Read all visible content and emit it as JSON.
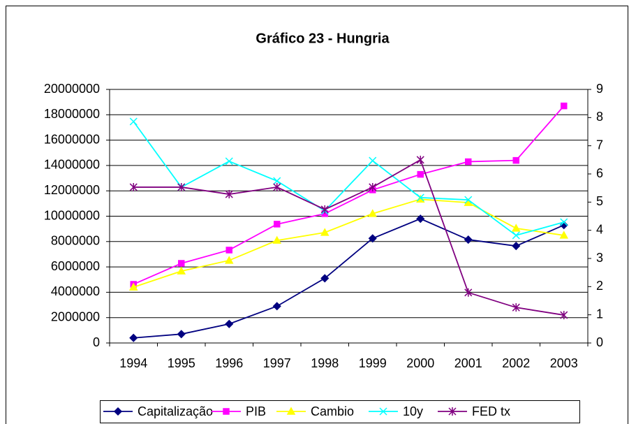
{
  "chart_data": {
    "type": "line",
    "title": "Gráfico 23 - Hungria",
    "categories": [
      "1994",
      "1995",
      "1996",
      "1997",
      "1998",
      "1999",
      "2000",
      "2001",
      "2002",
      "2003"
    ],
    "ylim": [
      0,
      20000000
    ],
    "yticks": [
      0,
      2000000,
      4000000,
      6000000,
      8000000,
      10000000,
      12000000,
      14000000,
      16000000,
      18000000,
      20000000
    ],
    "y2lim": [
      0,
      9
    ],
    "y2ticks": [
      0,
      1,
      2,
      3,
      4,
      5,
      6,
      7,
      8,
      9
    ],
    "grid": true,
    "legend": "bottom",
    "series": [
      {
        "name": "Capitalização",
        "color": "#000080",
        "marker": "diamond",
        "values": [
          400000,
          700000,
          1500000,
          2900000,
          5100000,
          8250000,
          9800000,
          8150000,
          7650000,
          9300000
        ]
      },
      {
        "name": "PIB",
        "color": "#ff00ff",
        "marker": "square",
        "values": [
          4630000,
          6280000,
          7330000,
          9370000,
          10200000,
          12070000,
          13300000,
          14300000,
          14400000,
          18700000
        ]
      },
      {
        "name": "Cambio",
        "color": "#ffff00",
        "marker": "triangle",
        "axis": "y2",
        "values": [
          1.98,
          2.55,
          2.93,
          3.64,
          3.92,
          4.59,
          5.1,
          4.98,
          4.07,
          3.82
        ]
      },
      {
        "name": "10y",
        "color": "#00ffff",
        "marker": "x",
        "axis": "y2",
        "values": [
          7.86,
          5.53,
          6.45,
          5.75,
          4.69,
          6.47,
          5.16,
          5.08,
          3.82,
          4.29
        ]
      },
      {
        "name": "FED tx",
        "color": "#800080",
        "marker": "star",
        "axis": "y2",
        "values": [
          5.53,
          5.53,
          5.28,
          5.53,
          4.74,
          5.53,
          6.5,
          1.79,
          1.26,
          0.99
        ]
      }
    ]
  }
}
